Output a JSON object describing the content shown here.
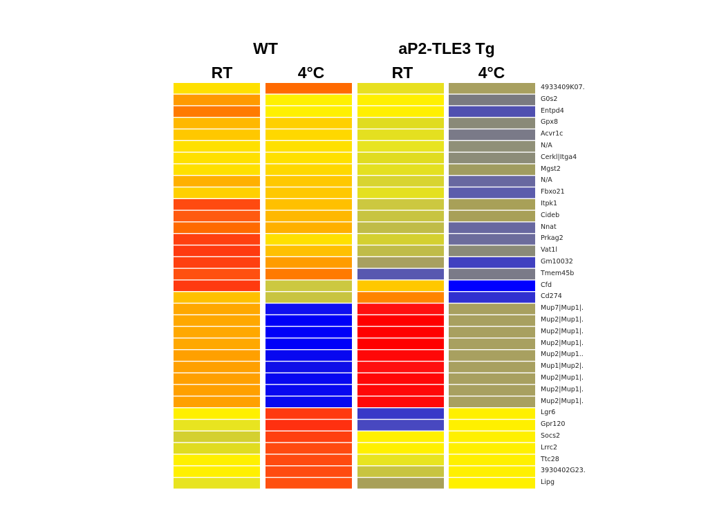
{
  "chart_data": {
    "type": "heatmap",
    "groups": [
      {
        "label": "WT",
        "columns": [
          "RT",
          "4°C"
        ]
      },
      {
        "label": "aP2-TLE3 Tg",
        "columns": [
          "RT",
          "4°C"
        ]
      }
    ],
    "columns": [
      "RT",
      "4°C",
      "RT",
      "4°C"
    ],
    "rows": [
      "4933409K07.",
      "G0s2",
      "Entpd4",
      "Gpx8",
      "Acvr1c",
      "N/A",
      "Cerkl|Itga4",
      "Mgst2",
      "N/A",
      "Fbxo21",
      "Itpk1",
      "Cideb",
      "Nnat",
      "Prkag2",
      "Vat1l",
      "Gm10032",
      "Tmem45b",
      "Cfd",
      "Cd274",
      "Mup7|Mup1|.",
      "Mup2|Mup1|.",
      "Mup2|Mup1|.",
      "Mup2|Mup1|.",
      "Mup2|Mup1..",
      "Mup1|Mup2|.",
      "Mup2|Mup1|.",
      "Mup2|Mup1|.",
      "Mup2|Mup1|.",
      "Lgr6",
      "Gpr120",
      "Socs2",
      "Lrrc2",
      "Ttc28",
      "3930402G23.",
      "Lipg"
    ],
    "cell_colors": [
      [
        "#ffe000",
        "#ff6a00",
        "#e8e020",
        "#a8a060"
      ],
      [
        "#ff9a00",
        "#fff000",
        "#fff000",
        "#7a7a80"
      ],
      [
        "#ff7a00",
        "#fff000",
        "#fff000",
        "#5050b0"
      ],
      [
        "#ffb800",
        "#ffd000",
        "#e0dc20",
        "#8a8a78"
      ],
      [
        "#ffc800",
        "#ffd800",
        "#e4e020",
        "#7a7a88"
      ],
      [
        "#ffe000",
        "#ffe000",
        "#e8e420",
        "#909078"
      ],
      [
        "#ffe000",
        "#ffe000",
        "#e0dc20",
        "#8c8c78"
      ],
      [
        "#ffe000",
        "#ffd800",
        "#e4e020",
        "#a09c60"
      ],
      [
        "#ffb000",
        "#ffc800",
        "#d8d430",
        "#6868a0"
      ],
      [
        "#ffd000",
        "#ffc800",
        "#e4e020",
        "#5c5cac"
      ],
      [
        "#ff4a10",
        "#ffc000",
        "#ccc840",
        "#a8a058"
      ],
      [
        "#ff5a10",
        "#ffb800",
        "#c8c440",
        "#a8a058"
      ],
      [
        "#ff6a00",
        "#ffb000",
        "#c0bc48",
        "#6868a0"
      ],
      [
        "#ff4010",
        "#ffe000",
        "#d4d030",
        "#6c6c9c"
      ],
      [
        "#ff3a10",
        "#ffc000",
        "#c0bc48",
        "#8a8a78"
      ],
      [
        "#ff4010",
        "#ff9c00",
        "#a8a060",
        "#4040c0"
      ],
      [
        "#ff5010",
        "#ff7a00",
        "#5858b0",
        "#7a7a88"
      ],
      [
        "#ff3a10",
        "#ccc840",
        "#ffc800",
        "#0000ff"
      ],
      [
        "#ffc000",
        "#c8c440",
        "#ff8400",
        "#3030d0"
      ],
      [
        "#ffa800",
        "#1010f0",
        "#ff1010",
        "#a8a060"
      ],
      [
        "#ffa800",
        "#0000f8",
        "#ff0000",
        "#a8a060"
      ],
      [
        "#ffa800",
        "#0000f8",
        "#ff0000",
        "#a8a060"
      ],
      [
        "#ffa800",
        "#0000f8",
        "#ff0000",
        "#a8a060"
      ],
      [
        "#ffa000",
        "#0808f0",
        "#ff0808",
        "#a8a060"
      ],
      [
        "#ffa000",
        "#1010e8",
        "#ff1010",
        "#a8a060"
      ],
      [
        "#ffa000",
        "#0808f0",
        "#ff0808",
        "#a8a060"
      ],
      [
        "#ffa000",
        "#0808f0",
        "#ff0808",
        "#a8a060"
      ],
      [
        "#ffa000",
        "#0808f0",
        "#ff0808",
        "#a8a060"
      ],
      [
        "#fff000",
        "#ff3a10",
        "#3838c8",
        "#fff000"
      ],
      [
        "#e8e420",
        "#ff3010",
        "#4848c0",
        "#fff000"
      ],
      [
        "#d4d030",
        "#ff4010",
        "#fff000",
        "#fff000"
      ],
      [
        "#e0dc20",
        "#ff4a10",
        "#fff000",
        "#fff000"
      ],
      [
        "#fff000",
        "#ff4a10",
        "#e8e420",
        "#fff000"
      ],
      [
        "#fff000",
        "#ff4a10",
        "#c8c440",
        "#fff000"
      ],
      [
        "#e8e420",
        "#ff5010",
        "#a8a058",
        "#fff000"
      ]
    ]
  }
}
